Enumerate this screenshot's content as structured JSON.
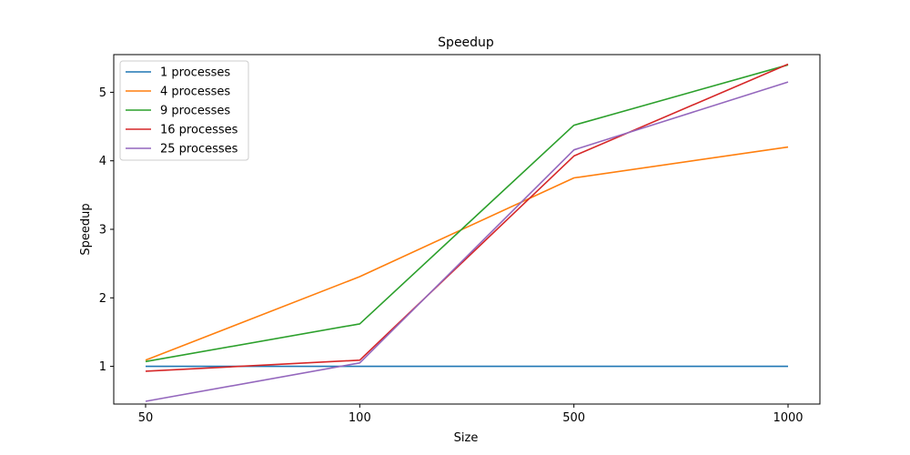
{
  "chart_data": {
    "type": "line",
    "title": "Speedup",
    "xlabel": "Size",
    "ylabel": "Speedup",
    "categories": [
      "50",
      "100",
      "500",
      "1000"
    ],
    "y_ticks": [
      "1",
      "2",
      "3",
      "4",
      "5"
    ],
    "ylim": [
      0.45,
      5.55
    ],
    "grid": false,
    "legend_position": "top-left",
    "series": [
      {
        "name": "1 processes",
        "color": "#1f77b4",
        "values": [
          1.0,
          1.0,
          1.0,
          1.0
        ]
      },
      {
        "name": "4 processes",
        "color": "#ff7f0e",
        "values": [
          1.09,
          2.31,
          3.75,
          4.2
        ]
      },
      {
        "name": "9 processes",
        "color": "#2ca02c",
        "values": [
          1.07,
          1.62,
          4.52,
          5.4
        ]
      },
      {
        "name": "16 processes",
        "color": "#d62728",
        "values": [
          0.93,
          1.09,
          4.07,
          5.41
        ]
      },
      {
        "name": "25 processes",
        "color": "#9467bd",
        "values": [
          0.49,
          1.05,
          4.16,
          5.15
        ]
      }
    ]
  }
}
